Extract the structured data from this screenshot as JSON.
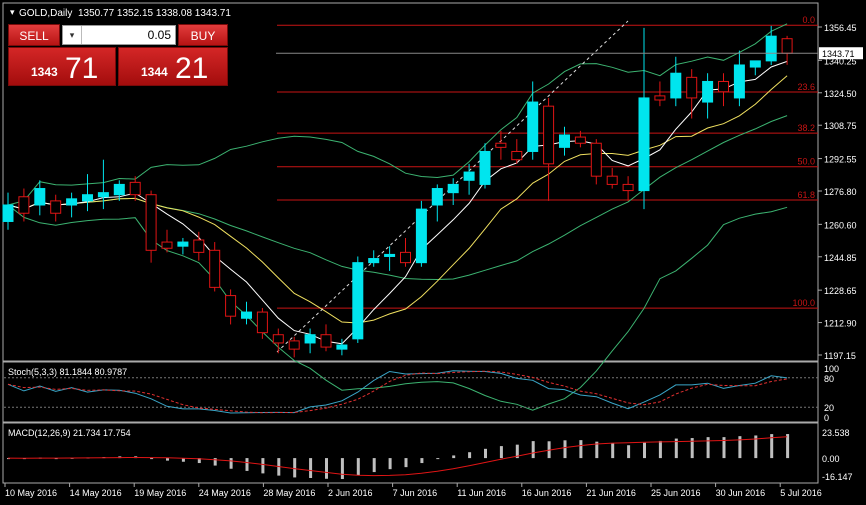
{
  "header": {
    "symbol_label": "GOLD,Daily",
    "ohlc": "1350.77 1352.15 1338.08 1343.71"
  },
  "trade_panel": {
    "sell_label": "SELL",
    "buy_label": "BUY",
    "lot_value": "0.05",
    "sell_price_small": "1343",
    "sell_price_big": "71",
    "buy_price_small": "1344",
    "buy_price_big": "21"
  },
  "price_axis": {
    "labels": [
      "1356.45",
      "1340.25",
      "1324.50",
      "1308.75",
      "1292.55",
      "1276.80",
      "1260.60",
      "1244.85",
      "1228.65",
      "1212.90",
      "1197.15"
    ],
    "current_price_label": "1343.71"
  },
  "fibonacci": {
    "levels": [
      {
        "label": "0.0",
        "price": 1357.3
      },
      {
        "label": "23.6",
        "price": 1324.9
      },
      {
        "label": "38.2",
        "price": 1304.9
      },
      {
        "label": "50.0",
        "price": 1288.6
      },
      {
        "label": "61.8",
        "price": 1272.4
      },
      {
        "label": "100.0",
        "price": 1219.9
      }
    ]
  },
  "stoch": {
    "label": "Stoch(5,3,3) 81.1844 80.9787",
    "levels": [
      "100",
      "80",
      "20",
      "0"
    ]
  },
  "macd": {
    "label": "MACD(12,26,9) 21.734 17.754",
    "levels": [
      "23.538",
      "0.00",
      "-16.147"
    ]
  },
  "date_axis": [
    "10 May 2016",
    "14 May 2016",
    "19 May 2016",
    "24 May 2016",
    "28 May 2016",
    "2 Jun 2016",
    "7 Jun 2016",
    "11 Jun 2016",
    "16 Jun 2016",
    "21 Jun 2016",
    "25 Jun 2016",
    "30 Jun 2016",
    "5 Jul 2016"
  ],
  "colors": {
    "background": "#000000",
    "bull_candle": "#00e5ee",
    "bear_candle": "#e01515",
    "fib_line": "#c81414",
    "bollinger": "#3cb371",
    "ma_fast": "#ffffff",
    "ma_slow": "#f0e060",
    "stoch_main": "#3aa6c8",
    "stoch_signal": "#e03030",
    "macd_hist": "#c0c0c0",
    "macd_signal": "#e01515"
  },
  "chart_data": {
    "type": "candlestick",
    "symbol": "GOLD",
    "timeframe": "Daily",
    "candles": [
      {
        "date": "2016-05-09",
        "o": 1262,
        "h": 1276,
        "l": 1258,
        "c": 1270
      },
      {
        "date": "2016-05-10",
        "o": 1274,
        "h": 1278,
        "l": 1262,
        "c": 1266
      },
      {
        "date": "2016-05-11",
        "o": 1270,
        "h": 1282,
        "l": 1265,
        "c": 1278
      },
      {
        "date": "2016-05-12",
        "o": 1272,
        "h": 1275,
        "l": 1262,
        "c": 1266
      },
      {
        "date": "2016-05-13",
        "o": 1270,
        "h": 1276,
        "l": 1264,
        "c": 1273
      },
      {
        "date": "2016-05-16",
        "o": 1272,
        "h": 1285,
        "l": 1267,
        "c": 1275
      },
      {
        "date": "2016-05-17",
        "o": 1274,
        "h": 1292,
        "l": 1268,
        "c": 1276
      },
      {
        "date": "2016-05-18",
        "o": 1275,
        "h": 1282,
        "l": 1272,
        "c": 1280
      },
      {
        "date": "2016-05-19",
        "o": 1281,
        "h": 1284,
        "l": 1272,
        "c": 1275
      },
      {
        "date": "2016-05-20",
        "o": 1275,
        "h": 1277,
        "l": 1242,
        "c": 1248
      },
      {
        "date": "2016-05-23",
        "o": 1252,
        "h": 1258,
        "l": 1247,
        "c": 1249
      },
      {
        "date": "2016-05-24",
        "o": 1250,
        "h": 1254,
        "l": 1246,
        "c": 1252
      },
      {
        "date": "2016-05-25",
        "o": 1253,
        "h": 1257,
        "l": 1243,
        "c": 1247
      },
      {
        "date": "2016-05-26",
        "o": 1248,
        "h": 1252,
        "l": 1228,
        "c": 1230
      },
      {
        "date": "2016-05-27",
        "o": 1226,
        "h": 1229,
        "l": 1212,
        "c": 1216
      },
      {
        "date": "2016-05-30",
        "o": 1215,
        "h": 1223,
        "l": 1212,
        "c": 1218
      },
      {
        "date": "2016-05-31",
        "o": 1218,
        "h": 1220,
        "l": 1205,
        "c": 1208
      },
      {
        "date": "2016-06-01",
        "o": 1207,
        "h": 1210,
        "l": 1198,
        "c": 1203
      },
      {
        "date": "2016-06-02",
        "o": 1204,
        "h": 1206,
        "l": 1196,
        "c": 1200
      },
      {
        "date": "2016-06-03",
        "o": 1203,
        "h": 1210,
        "l": 1198,
        "c": 1207
      },
      {
        "date": "2016-06-06",
        "o": 1207,
        "h": 1212,
        "l": 1199,
        "c": 1201
      },
      {
        "date": "2016-06-07",
        "o": 1200,
        "h": 1205,
        "l": 1197,
        "c": 1202
      },
      {
        "date": "2016-06-08",
        "o": 1205,
        "h": 1245,
        "l": 1203,
        "c": 1242
      },
      {
        "date": "2016-06-09",
        "o": 1242,
        "h": 1248,
        "l": 1240,
        "c": 1244
      },
      {
        "date": "2016-06-10",
        "o": 1245,
        "h": 1250,
        "l": 1238,
        "c": 1246
      },
      {
        "date": "2016-06-13",
        "o": 1247,
        "h": 1254,
        "l": 1240,
        "c": 1242
      },
      {
        "date": "2016-06-14",
        "o": 1242,
        "h": 1272,
        "l": 1240,
        "c": 1268
      },
      {
        "date": "2016-06-15",
        "o": 1270,
        "h": 1280,
        "l": 1262,
        "c": 1278
      },
      {
        "date": "2016-06-16",
        "o": 1276,
        "h": 1283,
        "l": 1270,
        "c": 1280
      },
      {
        "date": "2016-06-17",
        "o": 1282,
        "h": 1290,
        "l": 1275,
        "c": 1286
      },
      {
        "date": "2016-06-20",
        "o": 1280,
        "h": 1300,
        "l": 1278,
        "c": 1296
      },
      {
        "date": "2016-06-21",
        "o": 1300,
        "h": 1306,
        "l": 1292,
        "c": 1298
      },
      {
        "date": "2016-06-22",
        "o": 1296,
        "h": 1302,
        "l": 1290,
        "c": 1292
      },
      {
        "date": "2016-06-23",
        "o": 1296,
        "h": 1330,
        "l": 1292,
        "c": 1320
      },
      {
        "date": "2016-06-24",
        "o": 1318,
        "h": 1322,
        "l": 1272,
        "c": 1290
      },
      {
        "date": "2016-06-27",
        "o": 1298,
        "h": 1308,
        "l": 1294,
        "c": 1304
      },
      {
        "date": "2016-06-28",
        "o": 1303,
        "h": 1306,
        "l": 1298,
        "c": 1300
      },
      {
        "date": "2016-06-29",
        "o": 1300,
        "h": 1302,
        "l": 1280,
        "c": 1284
      },
      {
        "date": "2016-06-30",
        "o": 1284,
        "h": 1288,
        "l": 1278,
        "c": 1280
      },
      {
        "date": "2016-07-01",
        "o": 1280,
        "h": 1284,
        "l": 1272,
        "c": 1277
      },
      {
        "date": "2016-07-04",
        "o": 1277,
        "h": 1356,
        "l": 1268,
        "c": 1322
      },
      {
        "date": "2016-07-05",
        "o": 1323,
        "h": 1330,
        "l": 1318,
        "c": 1321
      },
      {
        "date": "2016-07-06",
        "o": 1322,
        "h": 1342,
        "l": 1318,
        "c": 1334
      },
      {
        "date": "2016-07-07",
        "o": 1332,
        "h": 1336,
        "l": 1312,
        "c": 1322
      },
      {
        "date": "2016-07-08",
        "o": 1320,
        "h": 1334,
        "l": 1312,
        "c": 1330
      },
      {
        "date": "2016-07-11",
        "o": 1330,
        "h": 1334,
        "l": 1318,
        "c": 1325
      },
      {
        "date": "2016-07-12",
        "o": 1322,
        "h": 1345,
        "l": 1318,
        "c": 1338
      },
      {
        "date": "2016-07-13",
        "o": 1337,
        "h": 1340,
        "l": 1333,
        "c": 1340
      },
      {
        "date": "2016-07-14",
        "o": 1340,
        "h": 1357,
        "l": 1338,
        "c": 1352
      },
      {
        "date": "2016-07-15",
        "o": 1350.77,
        "h": 1352.15,
        "l": 1338.08,
        "c": 1343.71
      }
    ]
  }
}
